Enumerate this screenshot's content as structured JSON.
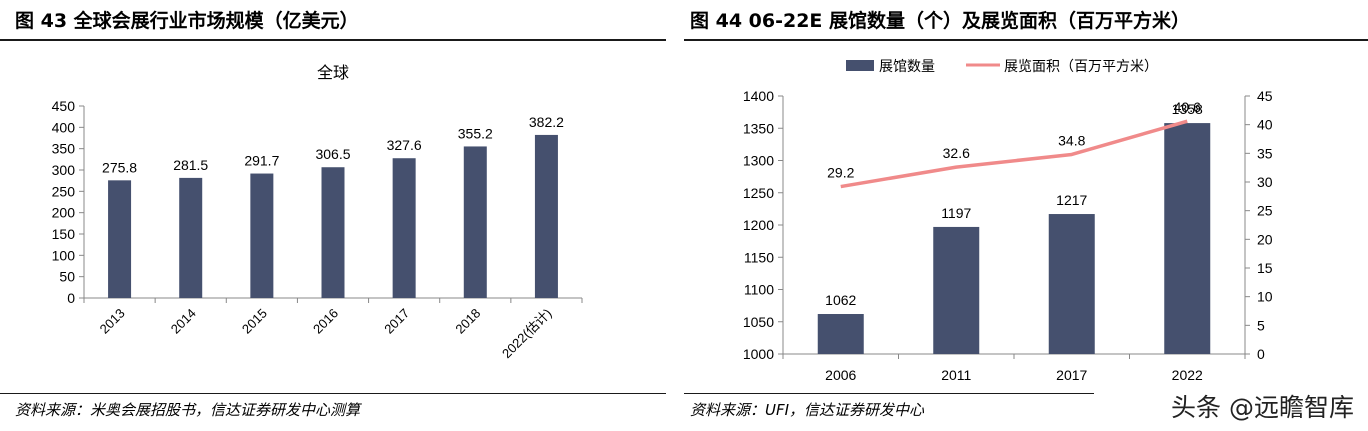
{
  "left": {
    "title": "图 43  全球会展行业市场规模（亿美元）",
    "source": "资料来源：米奥会展招股书，信达证券研发中心测算"
  },
  "right": {
    "title": "图 44  06-22E 展馆数量（个）及展览面积（百万平方米）",
    "source": "资料来源：UFI，信达证券研发中心"
  },
  "watermark": "头条 @远瞻智库",
  "colors": {
    "bar": "#45506e",
    "line": "#f08a8a",
    "axis": "#888888"
  },
  "chart_data": [
    {
      "type": "bar",
      "title": "全球",
      "categories": [
        "2013",
        "2014",
        "2015",
        "2016",
        "2017",
        "2018",
        "2022(估计)"
      ],
      "values": [
        275.8,
        281.5,
        291.7,
        306.5,
        327.6,
        355.2,
        382.2
      ],
      "value_labels": [
        "275.8",
        "281.5",
        "291.7",
        "306.5",
        "327.6",
        "355.2",
        "382.2"
      ],
      "ylim": [
        0,
        450
      ],
      "yticks": [
        0,
        50,
        100,
        150,
        200,
        250,
        300,
        350,
        400,
        450
      ],
      "grid": false,
      "legend": "none"
    },
    {
      "type": "bar+line",
      "categories": [
        "2006",
        "2011",
        "2017",
        "2022"
      ],
      "series": [
        {
          "name": "展馆数量",
          "kind": "bar",
          "axis": "left",
          "values": [
            1062,
            1197,
            1217,
            1358
          ],
          "value_labels": [
            "1062",
            "1197",
            "1217",
            "1358"
          ]
        },
        {
          "name": "展览面积（百万平方米）",
          "kind": "line",
          "axis": "right",
          "values": [
            29.2,
            32.6,
            34.8,
            40.6
          ],
          "value_labels": [
            "29.2",
            "32.6",
            "34.8",
            "40.6"
          ]
        }
      ],
      "ylim_left": [
        1000,
        1400
      ],
      "yticks_left": [
        1000,
        1050,
        1100,
        1150,
        1200,
        1250,
        1300,
        1350,
        1400
      ],
      "ylim_right": [
        0,
        45
      ],
      "yticks_right": [
        0,
        5,
        10,
        15,
        20,
        25,
        30,
        35,
        40,
        45
      ],
      "grid": false,
      "legend": "top-center"
    }
  ]
}
